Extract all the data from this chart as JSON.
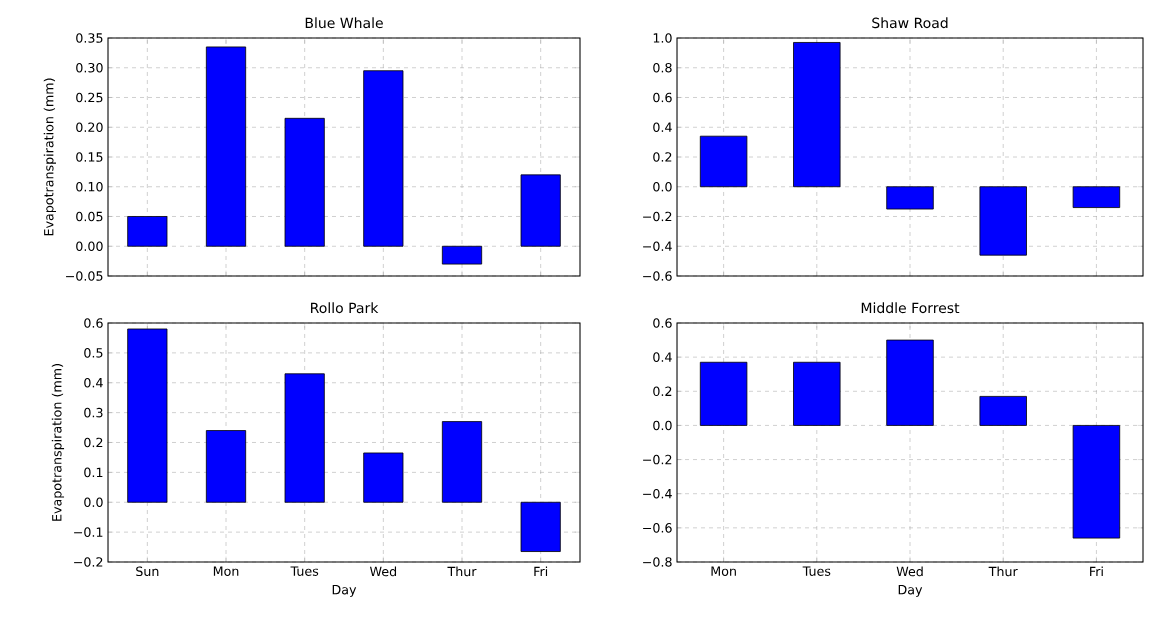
{
  "chart_data": [
    {
      "type": "bar",
      "title": "Blue Whale",
      "ylabel": "Evapotranspiration (mm)",
      "categories": [
        null,
        null,
        null,
        null,
        null,
        null
      ],
      "values": [
        0.05,
        0.335,
        0.215,
        0.295,
        -0.03,
        0.12
      ],
      "color": "#0000ff",
      "ylim": [
        -0.05,
        0.35
      ],
      "yticks": [
        {
          "value": -0.05,
          "label": "−0.05"
        },
        {
          "value": 0,
          "label": "0.00"
        },
        0.05,
        {
          "value": 0.1,
          "label": "0.10"
        },
        0.15,
        {
          "value": 0.2,
          "label": "0.20"
        },
        0.25,
        {
          "value": 0.3,
          "label": "0.30"
        },
        0.35
      ],
      "grid": true
    },
    {
      "type": "bar",
      "title": "Shaw Road",
      "categories": [
        null,
        null,
        null,
        null,
        null
      ],
      "values": [
        0.34,
        0.97,
        -0.15,
        -0.46,
        -0.14
      ],
      "color": "#0000ff",
      "ylim": [
        -0.6,
        1.0
      ],
      "yticks": [
        {
          "value": -0.6,
          "label": "−0.6"
        },
        {
          "value": -0.4,
          "label": "−0.4"
        },
        {
          "value": -0.2,
          "label": "−0.2"
        },
        {
          "value": 0,
          "label": "0.0"
        },
        0.2,
        0.4,
        0.6,
        0.8,
        {
          "value": 1,
          "label": "1.0"
        }
      ],
      "grid": true
    },
    {
      "type": "bar",
      "title": "Rollo Park",
      "ylabel": "Evapotranspiration (mm)",
      "xlabel": "Day",
      "categories": [
        "Sun",
        "Mon",
        "Tues",
        "Wed",
        "Thur",
        "Fri"
      ],
      "values": [
        0.58,
        0.24,
        0.43,
        0.165,
        0.27,
        -0.165
      ],
      "color": "#0000ff",
      "ylim": [
        -0.2,
        0.6
      ],
      "yticks": [
        {
          "value": -0.2,
          "label": "−0.2"
        },
        {
          "value": -0.1,
          "label": "−0.1"
        },
        {
          "value": 0,
          "label": "0.0"
        },
        0.1,
        0.2,
        0.3,
        0.4,
        0.5,
        0.6
      ],
      "grid": true
    },
    {
      "type": "bar",
      "title": "Middle Forrest",
      "xlabel": "Day",
      "categories": [
        "Mon",
        "Tues",
        "Wed",
        "Thur",
        "Fri"
      ],
      "values": [
        0.37,
        0.37,
        0.5,
        0.17,
        -0.66
      ],
      "color": "#0000ff",
      "ylim": [
        -0.8,
        0.6
      ],
      "yticks": [
        {
          "value": -0.8,
          "label": "−0.8"
        },
        {
          "value": -0.6,
          "label": "−0.6"
        },
        {
          "value": -0.4,
          "label": "−0.4"
        },
        {
          "value": -0.2,
          "label": "−0.2"
        },
        {
          "value": 0,
          "label": "0.0"
        },
        0.2,
        0.4,
        0.6
      ],
      "grid": true
    }
  ]
}
